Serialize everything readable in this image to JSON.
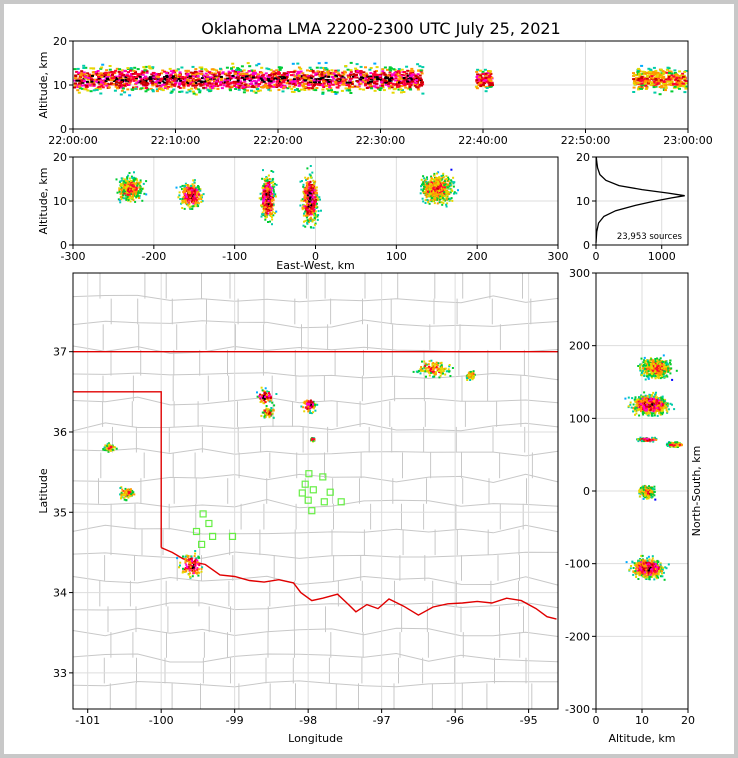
{
  "title": "Oklahoma LMA 2200-2300 UTC July 25, 2021",
  "colors": {
    "bg": "#ffffff",
    "grid": "#dddddd",
    "county": "#c8c8c8",
    "border": "#e00000",
    "station": "#66ee44",
    "density": [
      "#5500cc",
      "#0000ff",
      "#00aaff",
      "#00ccaa",
      "#00cc33",
      "#e6d800",
      "#ff9900",
      "#ff0033",
      "#cc0000",
      "#ff00cc",
      "#000000"
    ]
  },
  "chart_data": [
    {
      "type": "heatmap",
      "name": "altitude-time",
      "ylabel": "Altitude, km",
      "xlim": [
        "22:00:00",
        "23:00:00"
      ],
      "ylim": [
        0,
        20
      ],
      "xticks": [
        "22:00:00",
        "22:10:00",
        "22:20:00",
        "22:30:00",
        "22:40:00",
        "22:50:00",
        "23:00:00"
      ],
      "yticks": [
        "0",
        "10",
        "20"
      ],
      "clusters": [
        {
          "t0": 0.0,
          "t1": 34.0,
          "alt": 11.5,
          "spread": 2.6,
          "core": 1.0
        },
        {
          "t0": 39.2,
          "t1": 40.8,
          "alt": 11.5,
          "spread": 2.0,
          "core": 0.8
        },
        {
          "t0": 54.5,
          "t1": 60.0,
          "alt": 11.5,
          "spread": 2.4,
          "core": 0.6
        }
      ]
    },
    {
      "type": "heatmap",
      "name": "altitude-east-west",
      "xlabel": "East-West, km",
      "ylabel": "Altitude, km",
      "xlim": [
        -300,
        300
      ],
      "ylim": [
        0,
        20
      ],
      "xticks": [
        "-300",
        "-200",
        "-100",
        "0",
        "100",
        "200",
        "300"
      ],
      "yticks": [
        "0",
        "10",
        "20"
      ],
      "clusters": [
        {
          "x": -230,
          "alt": 13,
          "sx": 14,
          "sy": 2.5,
          "core": 0.2
        },
        {
          "x": -155,
          "alt": 11.5,
          "sx": 12,
          "sy": 2.5,
          "core": 1.0
        },
        {
          "x": -60,
          "alt": 11,
          "sx": 8,
          "sy": 4.5,
          "core": 1.0
        },
        {
          "x": -8,
          "alt": 10.5,
          "sx": 9,
          "sy": 5,
          "core": 1.0
        },
        {
          "x": 150,
          "alt": 13,
          "sx": 18,
          "sy": 3,
          "core": 0.5
        }
      ]
    },
    {
      "type": "line",
      "name": "altitude-histogram",
      "xlim": [
        0,
        1400
      ],
      "ylim": [
        0,
        20
      ],
      "xticks": [
        "0",
        "1000"
      ],
      "yticks": [
        "0",
        "10",
        "20"
      ],
      "annotation": "23,953 sources",
      "curve": [
        {
          "count": 0,
          "alt": 0.5
        },
        {
          "count": 10,
          "alt": 3
        },
        {
          "count": 40,
          "alt": 5
        },
        {
          "count": 120,
          "alt": 6.5
        },
        {
          "count": 300,
          "alt": 7.8
        },
        {
          "count": 600,
          "alt": 9
        },
        {
          "count": 900,
          "alt": 10
        },
        {
          "count": 1150,
          "alt": 10.7
        },
        {
          "count": 1350,
          "alt": 11.2
        },
        {
          "count": 1100,
          "alt": 11.8
        },
        {
          "count": 700,
          "alt": 12.6
        },
        {
          "count": 350,
          "alt": 13.5
        },
        {
          "count": 150,
          "alt": 14.7
        },
        {
          "count": 60,
          "alt": 16
        },
        {
          "count": 25,
          "alt": 17.5
        },
        {
          "count": 10,
          "alt": 19
        },
        {
          "count": 5,
          "alt": 20
        }
      ]
    },
    {
      "type": "heatmap",
      "name": "plan-view",
      "xlabel": "Longitude",
      "ylabel": "Latitude",
      "xlim": [
        -101.2,
        -94.6
      ],
      "ylim": [
        32.55,
        37.98
      ],
      "xticks": [
        "-101",
        "-100",
        "-99",
        "-98",
        "-97",
        "-96",
        "-95"
      ],
      "yticks": [
        "33",
        "34",
        "35",
        "36",
        "37"
      ],
      "clusters": [
        {
          "lon": -96.3,
          "lat": 36.8,
          "sx": 0.2,
          "sy": 0.09,
          "core": 0.4
        },
        {
          "lon": -95.8,
          "lat": 36.72,
          "sx": 0.06,
          "sy": 0.05,
          "core": 0.1
        },
        {
          "lon": -98.6,
          "lat": 36.45,
          "sx": 0.1,
          "sy": 0.08,
          "core": 0.9
        },
        {
          "lon": -98.55,
          "lat": 36.25,
          "sx": 0.08,
          "sy": 0.06,
          "core": 0.5
        },
        {
          "lon": -98.0,
          "lat": 36.35,
          "sx": 0.08,
          "sy": 0.08,
          "core": 0.9
        },
        {
          "lon": -97.95,
          "lat": 35.92,
          "sx": 0.03,
          "sy": 0.02,
          "core": 0.2
        },
        {
          "lon": -100.72,
          "lat": 35.82,
          "sx": 0.07,
          "sy": 0.04,
          "core": 0.1
        },
        {
          "lon": -100.48,
          "lat": 35.25,
          "sx": 0.1,
          "sy": 0.07,
          "core": 0.3
        },
        {
          "lon": -99.6,
          "lat": 34.35,
          "sx": 0.13,
          "sy": 0.13,
          "core": 1.0
        }
      ],
      "stations": [
        {
          "lon": -99.43,
          "lat": 34.98
        },
        {
          "lon": -99.35,
          "lat": 34.86
        },
        {
          "lon": -99.52,
          "lat": 34.76
        },
        {
          "lon": -99.3,
          "lat": 34.7
        },
        {
          "lon": -99.03,
          "lat": 34.7
        },
        {
          "lon": -99.45,
          "lat": 34.6
        },
        {
          "lon": -97.99,
          "lat": 35.48
        },
        {
          "lon": -97.8,
          "lat": 35.44
        },
        {
          "lon": -98.04,
          "lat": 35.35
        },
        {
          "lon": -97.93,
          "lat": 35.28
        },
        {
          "lon": -97.7,
          "lat": 35.25
        },
        {
          "lon": -98.08,
          "lat": 35.24
        },
        {
          "lon": -98.0,
          "lat": 35.15
        },
        {
          "lon": -97.78,
          "lat": 35.13
        },
        {
          "lon": -97.55,
          "lat": 35.13
        },
        {
          "lon": -97.95,
          "lat": 35.02
        }
      ],
      "red_river": [
        {
          "lon": -100.0,
          "lat": 34.56
        },
        {
          "lon": -99.85,
          "lat": 34.5
        },
        {
          "lon": -99.7,
          "lat": 34.42
        },
        {
          "lon": -99.55,
          "lat": 34.38
        },
        {
          "lon": -99.4,
          "lat": 34.35
        },
        {
          "lon": -99.2,
          "lat": 34.22
        },
        {
          "lon": -99.0,
          "lat": 34.2
        },
        {
          "lon": -98.8,
          "lat": 34.15
        },
        {
          "lon": -98.6,
          "lat": 34.13
        },
        {
          "lon": -98.4,
          "lat": 34.16
        },
        {
          "lon": -98.2,
          "lat": 34.12
        },
        {
          "lon": -98.1,
          "lat": 34.0
        },
        {
          "lon": -97.95,
          "lat": 33.9
        },
        {
          "lon": -97.8,
          "lat": 33.93
        },
        {
          "lon": -97.6,
          "lat": 33.98
        },
        {
          "lon": -97.45,
          "lat": 33.85
        },
        {
          "lon": -97.35,
          "lat": 33.76
        },
        {
          "lon": -97.2,
          "lat": 33.85
        },
        {
          "lon": -97.05,
          "lat": 33.8
        },
        {
          "lon": -96.9,
          "lat": 33.92
        },
        {
          "lon": -96.7,
          "lat": 33.83
        },
        {
          "lon": -96.5,
          "lat": 33.72
        },
        {
          "lon": -96.3,
          "lat": 33.82
        },
        {
          "lon": -96.1,
          "lat": 33.86
        },
        {
          "lon": -95.9,
          "lat": 33.87
        },
        {
          "lon": -95.7,
          "lat": 33.89
        },
        {
          "lon": -95.5,
          "lat": 33.87
        },
        {
          "lon": -95.3,
          "lat": 33.93
        },
        {
          "lon": -95.1,
          "lat": 33.9
        },
        {
          "lon": -94.9,
          "lat": 33.8
        },
        {
          "lon": -94.75,
          "lat": 33.7
        },
        {
          "lon": -94.62,
          "lat": 33.67
        }
      ]
    },
    {
      "type": "heatmap",
      "name": "altitude-north-south",
      "xlabel": "Altitude, km",
      "ylabel": "North-South, km",
      "xlim": [
        0,
        20
      ],
      "ylim": [
        -300,
        300
      ],
      "xticks": [
        "0",
        "10",
        "20"
      ],
      "yticks": [
        "-300",
        "-200",
        "-100",
        "0",
        "100",
        "200",
        "300"
      ],
      "clusters": [
        {
          "alt": 13,
          "ns": 170,
          "sx": 3,
          "sy": 12,
          "core": 0.3
        },
        {
          "alt": 11.5,
          "ns": 120,
          "sx": 3.5,
          "sy": 12,
          "core": 1.0
        },
        {
          "alt": 11,
          "ns": 72,
          "sx": 2,
          "sy": 2,
          "core": 0.8
        },
        {
          "alt": 17,
          "ns": 65,
          "sx": 1.5,
          "sy": 3,
          "core": 0.1
        },
        {
          "alt": 11,
          "ns": 0,
          "sx": 1.5,
          "sy": 8,
          "core": 0.1
        },
        {
          "alt": 11,
          "ns": -105,
          "sx": 3,
          "sy": 12,
          "core": 1.0
        }
      ]
    }
  ]
}
